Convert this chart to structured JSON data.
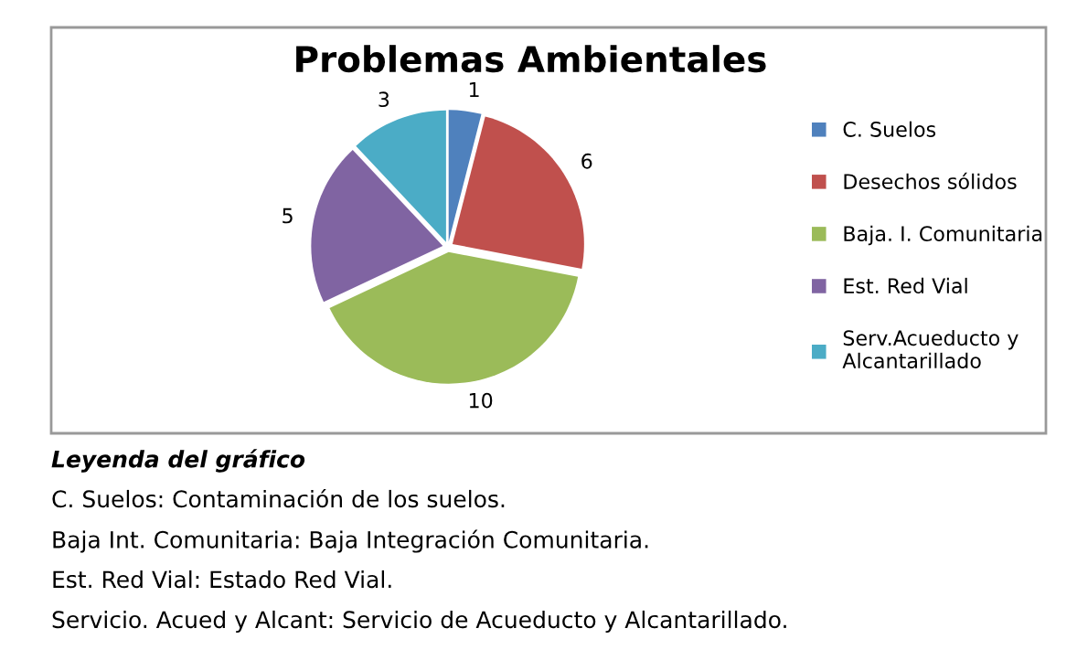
{
  "chart_data": {
    "type": "pie",
    "title": "Problemas Ambientales",
    "categories": [
      "C. Suelos",
      "Desechos sólidos",
      "Baja. I. Comunitaria",
      "Est. Red Vial",
      "Serv.Acueducto y\nAlcantarillado"
    ],
    "values": [
      1,
      6,
      10,
      5,
      3
    ],
    "colors": [
      "#4f81bd",
      "#c0504d",
      "#9bbb59",
      "#8064a2",
      "#4bacc6"
    ],
    "data_labels": true,
    "legend": "right",
    "annotations": [
      "Leyenda del gráfico",
      "C. Suelos: Contaminación de los suelos.",
      "Baja Int. Comunitaria: Baja Integración Comunitaria.",
      "Est. Red Vial: Estado Red Vial.",
      "Servicio. Acued y Alcant: Servicio de Acueducto y Alcantarillado."
    ]
  }
}
